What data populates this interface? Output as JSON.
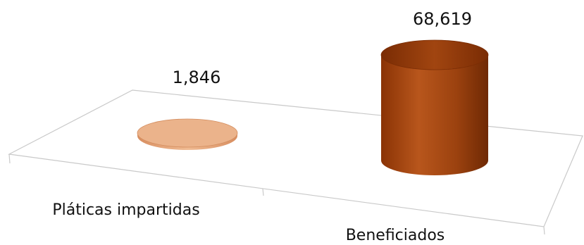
{
  "chart_data": {
    "type": "bar",
    "categories": [
      "Pláticas impartidas",
      "Beneficiados"
    ],
    "values": [
      1846,
      68619
    ],
    "value_labels": [
      "1,846",
      "68,619"
    ],
    "title": "",
    "xlabel": "",
    "ylabel": "",
    "ylim": [
      0,
      68619
    ],
    "grid": false,
    "legend": "none",
    "bar_shape": "cylinder",
    "colors": {
      "Pláticas impartidas": "#e8a77a",
      "Beneficiados": "#a5470f"
    }
  }
}
